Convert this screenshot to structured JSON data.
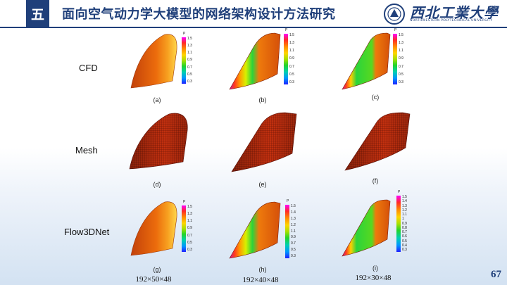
{
  "header": {
    "section_number": "五",
    "title": "面向空气动力学大模型的网络架构设计方法研究",
    "logo_cn": "西北工業大學",
    "logo_en": "NORTHWESTERN POLYTECHNICAL UNIVERSITY"
  },
  "rows": [
    {
      "label": "CFD"
    },
    {
      "label": "Mesh"
    },
    {
      "label": "Flow3DNet"
    }
  ],
  "panels": [
    {
      "caption": "(a)"
    },
    {
      "caption": "(b)"
    },
    {
      "caption": "(c)"
    },
    {
      "caption": "(d)"
    },
    {
      "caption": "(e)"
    },
    {
      "caption": "(f)"
    },
    {
      "caption": "(g)"
    },
    {
      "caption": "(h)"
    },
    {
      "caption": "(i)"
    }
  ],
  "grid_sizes": [
    "192×50×48",
    "192×40×48",
    "192×30×48"
  ],
  "colorbar": {
    "label": "P",
    "ticks": [
      "1.5",
      "1.4",
      "1.3",
      "1.2",
      "1.1",
      "1",
      "0.9",
      "0.8",
      "0.7",
      "0.6",
      "0.5",
      "0.4",
      "0.3"
    ]
  },
  "page_number": "67",
  "colors": {
    "brand": "#1f3f7a",
    "surface": "#e8670a",
    "mesh": "#b3220f"
  }
}
